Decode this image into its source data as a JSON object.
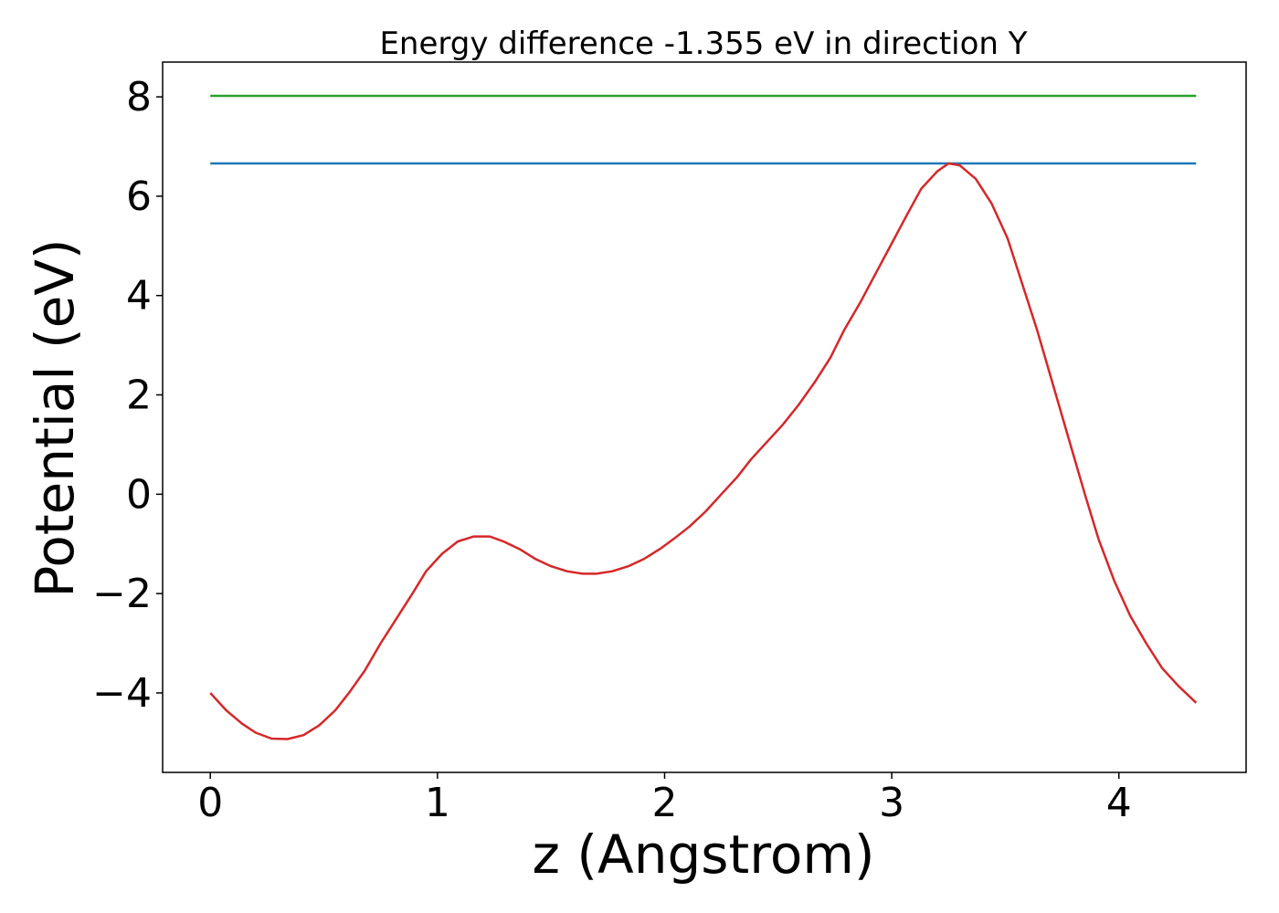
{
  "chart_data": {
    "type": "line",
    "title": "Energy difference -1.355 eV in direction Y",
    "xlabel": "z (Angstrom)",
    "ylabel": "Potential (eV)",
    "xlim": [
      -0.21,
      4.56
    ],
    "ylim": [
      -5.6,
      8.7
    ],
    "xticks": [
      0,
      1,
      2,
      3,
      4
    ],
    "xtick_labels": [
      "0",
      "1",
      "2",
      "3",
      "4"
    ],
    "yticks": [
      -4,
      -2,
      0,
      2,
      4,
      6,
      8
    ],
    "ytick_labels": [
      "−4",
      "−2",
      "0",
      "2",
      "4",
      "6",
      "8"
    ],
    "grid": false,
    "legend": "none",
    "series": [
      {
        "color": "#1f77b4",
        "x": [
          0,
          4.34
        ],
        "y": [
          6.66,
          6.66
        ]
      },
      {
        "color": "#2ca02c",
        "x": [
          0,
          4.34
        ],
        "y": [
          8.02,
          8.02
        ]
      },
      {
        "color": "#d62728",
        "x": [
          0,
          0.07,
          0.14,
          0.2,
          0.27,
          0.34,
          0.41,
          0.48,
          0.55,
          0.61,
          0.68,
          0.75,
          0.82,
          0.89,
          0.95,
          1.02,
          1.09,
          1.16,
          1.23,
          1.29,
          1.36,
          1.43,
          1.5,
          1.57,
          1.64,
          1.7,
          1.77,
          1.84,
          1.91,
          1.98,
          2.04,
          2.11,
          2.18,
          2.25,
          2.32,
          2.38,
          2.45,
          2.52,
          2.59,
          2.66,
          2.73,
          2.79,
          2.86,
          2.93,
          3.0,
          3.07,
          3.13,
          3.2,
          3.25,
          3.3,
          3.37,
          3.44,
          3.51,
          3.57,
          3.64,
          3.71,
          3.78,
          3.85,
          3.91,
          3.98,
          4.05,
          4.12,
          4.19,
          4.26,
          4.34
        ],
        "y": [
          -4.0,
          -4.35,
          -4.62,
          -4.8,
          -4.92,
          -4.93,
          -4.85,
          -4.65,
          -4.35,
          -4.0,
          -3.55,
          -3.0,
          -2.5,
          -2.0,
          -1.55,
          -1.2,
          -0.95,
          -0.85,
          -0.85,
          -0.95,
          -1.1,
          -1.3,
          -1.45,
          -1.55,
          -1.6,
          -1.6,
          -1.55,
          -1.45,
          -1.3,
          -1.1,
          -0.9,
          -0.65,
          -0.35,
          0.0,
          0.35,
          0.7,
          1.05,
          1.4,
          1.8,
          2.25,
          2.75,
          3.3,
          3.85,
          4.45,
          5.05,
          5.65,
          6.15,
          6.5,
          6.66,
          6.62,
          6.35,
          5.85,
          5.15,
          4.3,
          3.3,
          2.2,
          1.1,
          0.0,
          -0.9,
          -1.75,
          -2.45,
          -3.0,
          -3.5,
          -3.85,
          -4.2
        ]
      }
    ]
  }
}
